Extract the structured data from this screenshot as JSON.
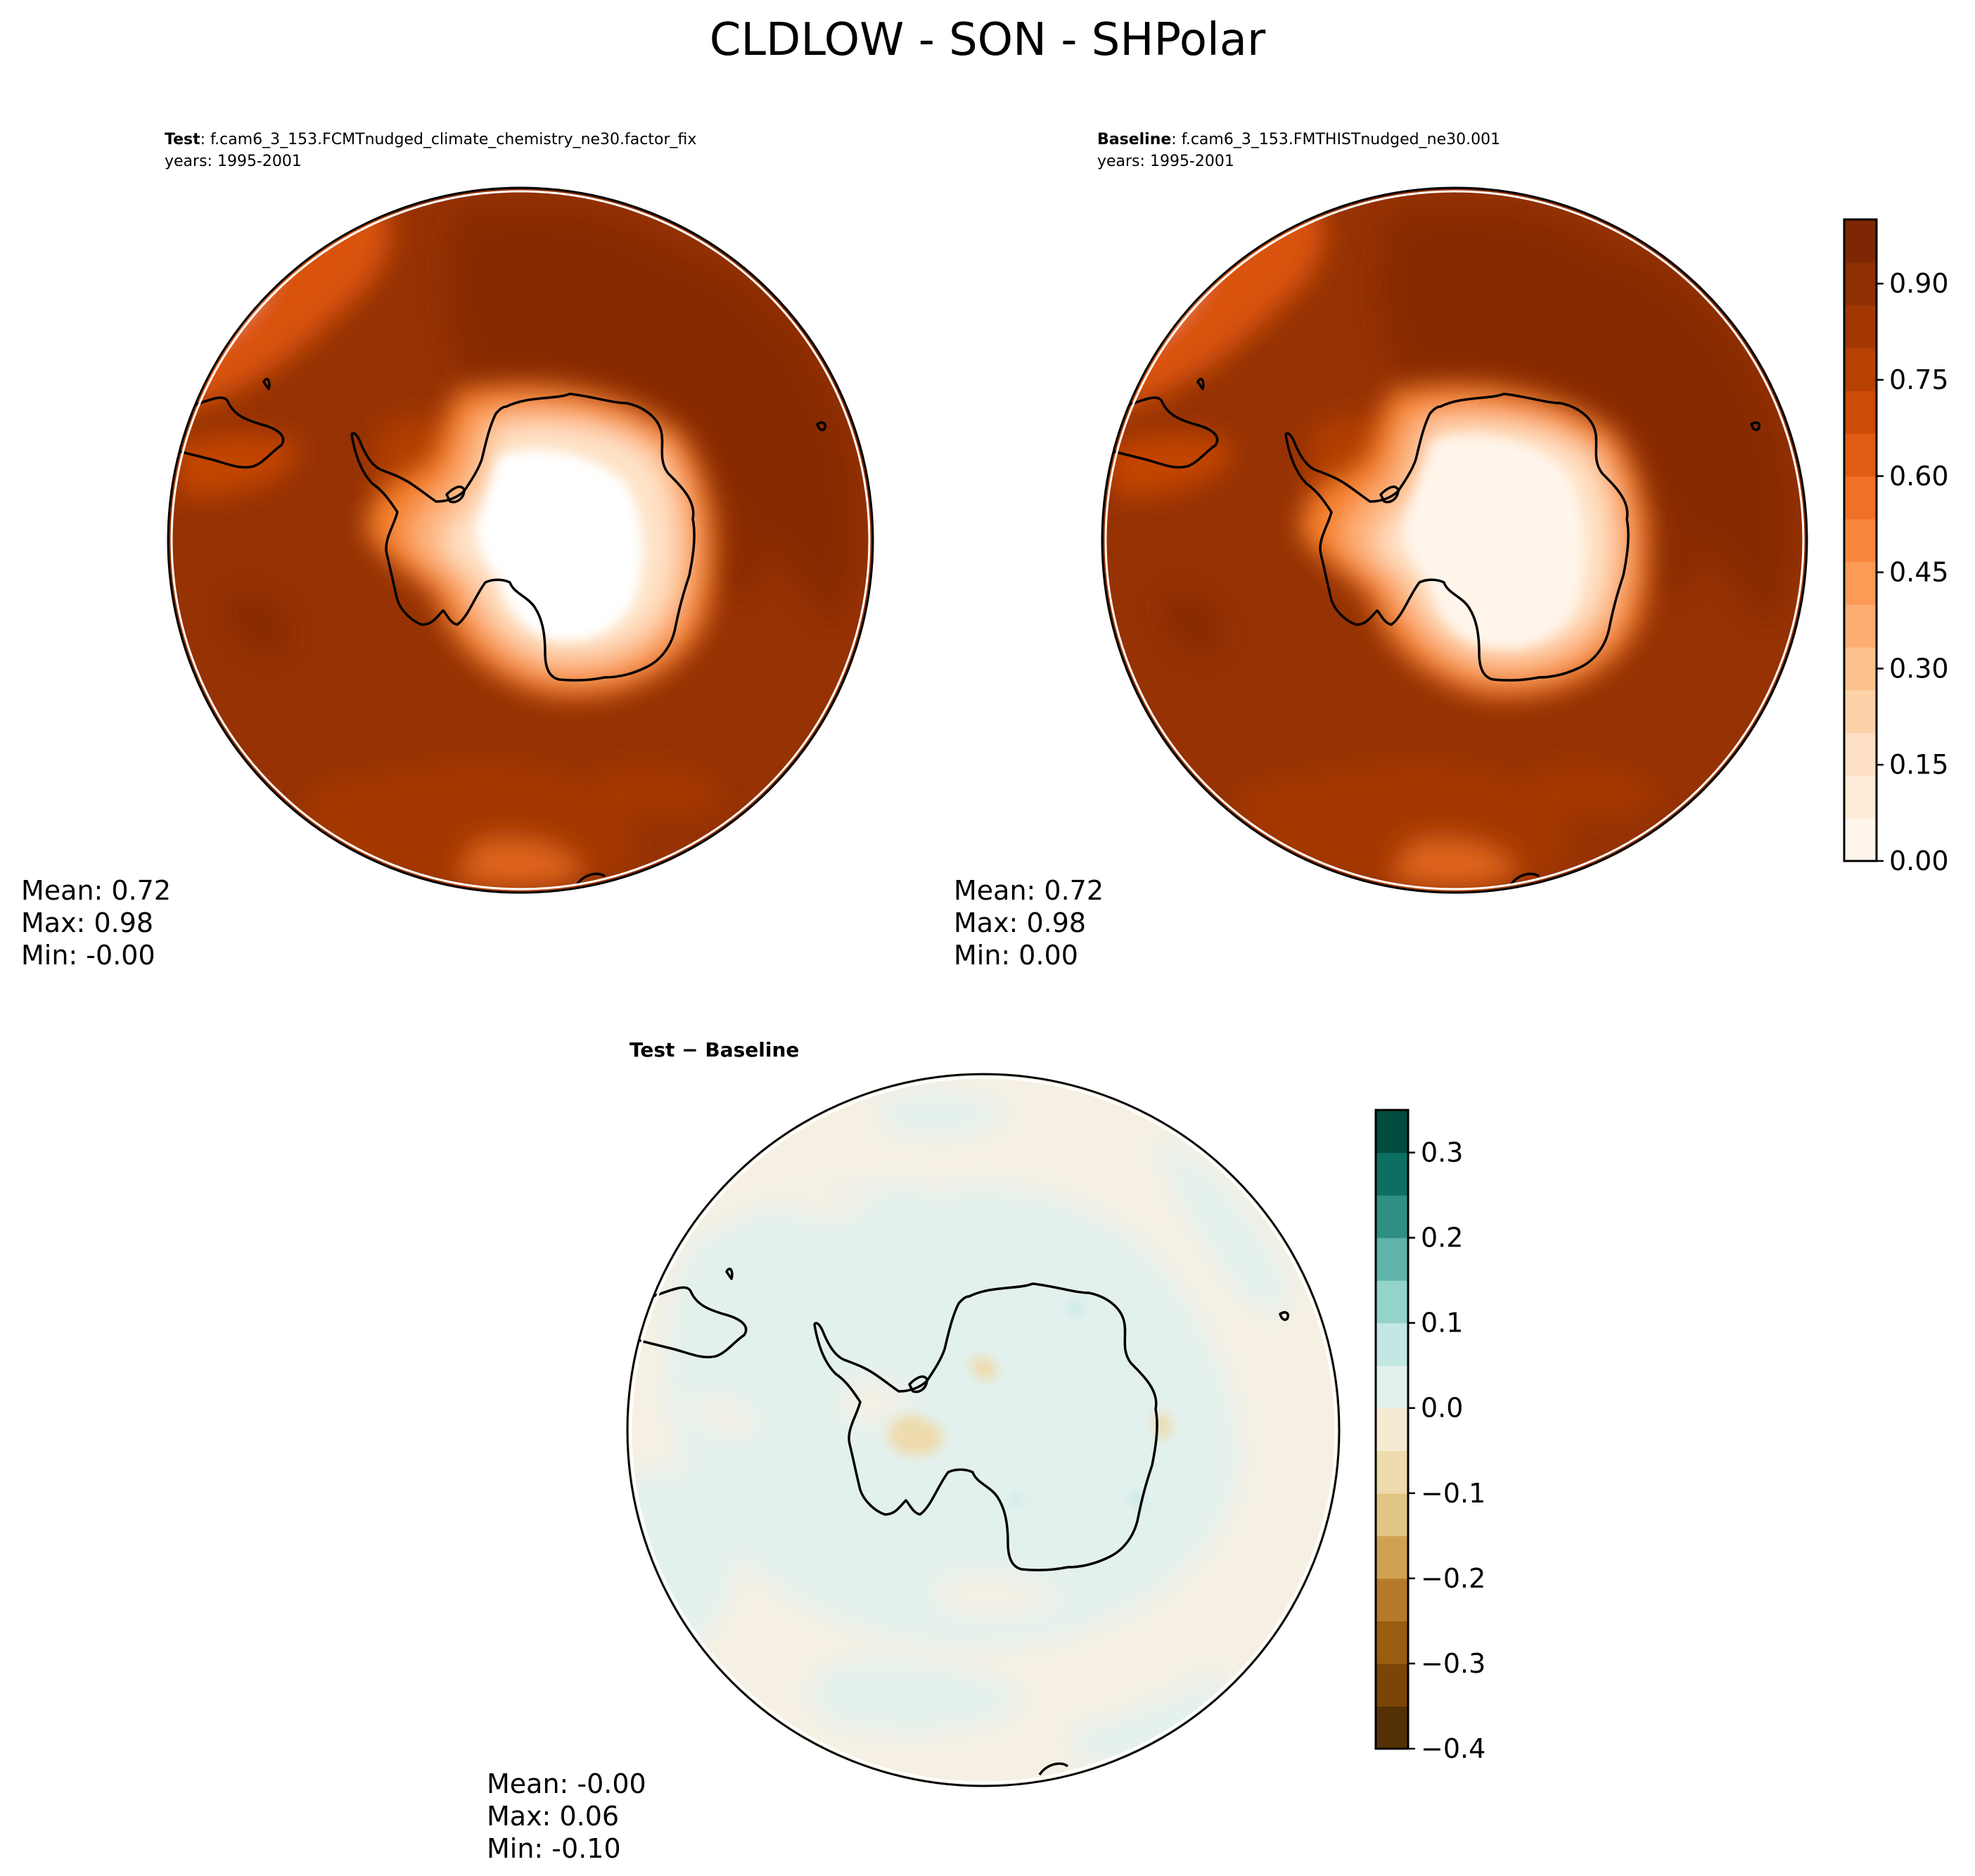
{
  "figure": {
    "title": "CLDLOW - SON - SHPolar"
  },
  "panels": [
    {
      "id": "test",
      "header_bold": "Test",
      "header_text": ": f.cam6_3_153.FCMTnudged_climate_chemistry_ne30.factor_fix",
      "years": "years: 1995-2001",
      "stats": [
        "Mean:  0.72",
        "Max:  0.98",
        "Min: -0.00"
      ]
    },
    {
      "id": "baseline",
      "header_bold": "Baseline",
      "header_text": ": f.cam6_3_153.FMTHISTnudged_ne30.001",
      "years": "years: 1995-2001",
      "stats": [
        "Mean:  0.72",
        "Max:  0.98",
        "Min:  0.00"
      ]
    },
    {
      "id": "diff",
      "header_bold": "Test − Baseline",
      "stats": [
        "Mean: -0.00",
        "Max:  0.06",
        "Min: -0.10"
      ]
    }
  ],
  "colorbars": {
    "field": {
      "ticks": [
        "0.00",
        "0.15",
        "0.30",
        "0.45",
        "0.60",
        "0.75",
        "0.90"
      ],
      "tick_values": [
        0,
        0.15,
        0.3,
        0.45,
        0.6,
        0.75,
        0.9
      ],
      "range": [
        0,
        1.0
      ],
      "colors": [
        "#fff5eb",
        "#feebd8",
        "#fee1c4",
        "#fdd2a8",
        "#fdc28c",
        "#fdad71",
        "#fd9a55",
        "#f8863c",
        "#f07026",
        "#e05c13",
        "#cc4b06",
        "#b64103",
        "#a33703",
        "#8f2f04",
        "#7f2704"
      ]
    },
    "diff": {
      "ticks": [
        "0.3",
        "0.2",
        "0.1",
        "0.0",
        "−0.1",
        "−0.2",
        "−0.3",
        "−0.4"
      ],
      "tick_values": [
        0.3,
        0.2,
        0.1,
        0.0,
        -0.1,
        -0.2,
        -0.3,
        -0.4
      ],
      "range": [
        -0.4,
        0.35
      ],
      "colors": [
        "#543005",
        "#7a4507",
        "#9b5d10",
        "#b57a2a",
        "#cfa253",
        "#e0c584",
        "#eedbae",
        "#f5ebd2",
        "#e3f1ee",
        "#c3e7e2",
        "#93d3c9",
        "#5fb3a9",
        "#2f8f84",
        "#0d6f63",
        "#004c3f"
      ]
    }
  }
}
